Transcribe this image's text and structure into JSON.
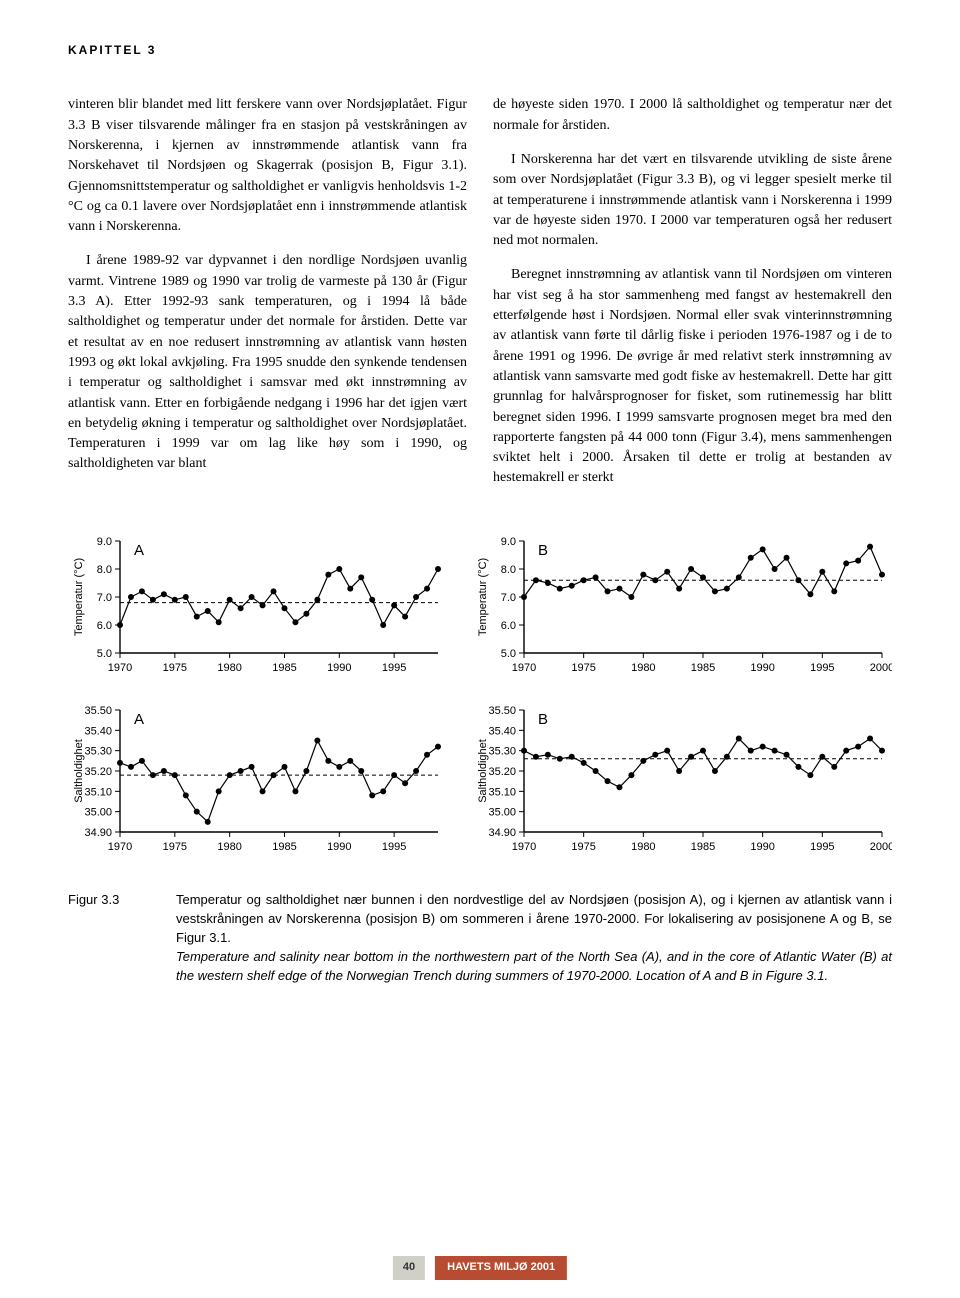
{
  "chapter_label": "KAPITTEL 3",
  "left_col": {
    "p1": "vinteren blir blandet med litt ferskere vann over Nordsjøplatået. Figur 3.3 B viser tilsvarende målinger fra en stasjon på vestskråningen av Norskerenna, i kjernen av innstrømmende atlantisk vann fra Norskehavet til Nordsjøen og Skagerrak (posisjon B, Figur 3.1). Gjennomsnittstemperatur og saltholdighet er vanligvis henholdsvis 1-2 °C og ca 0.1 lavere over Nordsjøplatået enn i innstrømmende atlantisk vann i Norskerenna.",
    "p2": "I årene 1989-92 var dypvannet i den nordlige Nordsjøen uvanlig varmt. Vintrene 1989 og 1990 var trolig de varmeste på 130 år (Figur 3.3 A). Etter 1992-93 sank temperaturen, og i 1994 lå både saltholdighet og temperatur under det normale for årstiden. Dette var et resultat av en noe redusert innstrømning av atlantisk vann høsten 1993 og økt lokal avkjøling. Fra 1995 snudde den synkende tendensen i temperatur og saltholdighet i samsvar med økt innstrømning av atlantisk vann. Etter en forbigående nedgang i 1996 har det igjen vært en betydelig økning i temperatur og saltholdighet over Nordsjøplatået. Temperaturen i 1999 var om lag like høy som i 1990, og saltholdigheten var blant"
  },
  "right_col": {
    "p1": "de høyeste siden 1970. I 2000 lå saltholdighet og temperatur nær det normale for årstiden.",
    "p2": "I Norskerenna har det vært en tilsvarende utvikling de siste årene som over Nordsjøplatået (Figur 3.3 B), og vi legger spesielt merke til at temperaturene i innstrømmende atlantisk vann i Norskerenna i 1999 var de høyeste siden 1970. I 2000 var temperaturen også her redusert ned mot normalen.",
    "p3": "Beregnet innstrømning av atlantisk vann til Nordsjøen om vinteren har vist seg å ha stor sammenheng med fangst av hestemakrell den etterfølgende høst i Nordsjøen. Normal eller svak vinterinnstrømning av atlantisk vann førte til dårlig fiske i perioden 1976-1987 og i de to årene 1991 og 1996. De øvrige år med relativt sterk innstrømning av atlantisk vann samsvarte med godt fiske av hestemakrell. Dette har gitt grunnlag for halvårsprognoser for fisket, som rutinemessig har blitt beregnet siden 1996. I 1999 samsvarte prognosen meget bra med den rapporterte fangsten på 44 000 tonn (Figur 3.4), mens sammenhengen sviktet helt i 2000. Årsaken til dette er trolig at bestanden av hestemakrell er sterkt"
  },
  "chart_temp_a": {
    "type": "line",
    "label": "A",
    "ylabel": "Temperatur (°C)",
    "ylim": [
      5.0,
      9.0
    ],
    "yticks": [
      5.0,
      6.0,
      7.0,
      8.0,
      9.0
    ],
    "xlim": [
      1970,
      1999
    ],
    "xticks": [
      1970,
      1975,
      1980,
      1985,
      1990,
      1995
    ],
    "mean_line": 6.8,
    "x": [
      1970,
      1971,
      1972,
      1973,
      1974,
      1975,
      1976,
      1977,
      1978,
      1979,
      1980,
      1981,
      1982,
      1983,
      1984,
      1985,
      1986,
      1987,
      1988,
      1989,
      1990,
      1991,
      1992,
      1993,
      1994,
      1995,
      1996,
      1997,
      1998,
      1999
    ],
    "y": [
      6.0,
      7.0,
      7.2,
      6.9,
      7.1,
      6.9,
      7.0,
      6.3,
      6.5,
      6.1,
      6.9,
      6.6,
      7.0,
      6.7,
      7.2,
      6.6,
      6.1,
      6.4,
      6.9,
      7.8,
      8.0,
      7.3,
      7.7,
      6.9,
      6.0,
      6.7,
      6.3,
      7.0,
      7.3,
      8.0
    ],
    "line_color": "#000000",
    "marker": "circle",
    "marker_size": 3,
    "grid_color": "#000000",
    "bg": "#ffffff"
  },
  "chart_temp_b": {
    "type": "line",
    "label": "B",
    "ylabel": "Temperatur (°C)",
    "ylim": [
      5.0,
      9.0
    ],
    "yticks": [
      5.0,
      6.0,
      7.0,
      8.0,
      9.0
    ],
    "xlim": [
      1970,
      2000
    ],
    "xticks": [
      1970,
      1975,
      1980,
      1985,
      1990,
      1995,
      2000
    ],
    "mean_line": 7.6,
    "x": [
      1970,
      1971,
      1972,
      1973,
      1974,
      1975,
      1976,
      1977,
      1978,
      1979,
      1980,
      1981,
      1982,
      1983,
      1984,
      1985,
      1986,
      1987,
      1988,
      1989,
      1990,
      1991,
      1992,
      1993,
      1994,
      1995,
      1996,
      1997,
      1998,
      1999,
      2000
    ],
    "y": [
      7.0,
      7.6,
      7.5,
      7.3,
      7.4,
      7.6,
      7.7,
      7.2,
      7.3,
      7.0,
      7.8,
      7.6,
      7.9,
      7.3,
      8.0,
      7.7,
      7.2,
      7.3,
      7.7,
      8.4,
      8.7,
      8.0,
      8.4,
      7.6,
      7.1,
      7.9,
      7.2,
      8.2,
      8.3,
      8.8,
      7.8
    ],
    "line_color": "#000000",
    "marker": "circle",
    "marker_size": 3,
    "grid_color": "#000000",
    "bg": "#ffffff"
  },
  "chart_salt_a": {
    "type": "line",
    "label": "A",
    "ylabel": "Saltholdighet",
    "ylim": [
      34.9,
      35.5
    ],
    "yticks": [
      34.9,
      35.0,
      35.1,
      35.2,
      35.3,
      35.4,
      35.5
    ],
    "xlim": [
      1970,
      1999
    ],
    "xticks": [
      1970,
      1975,
      1980,
      1985,
      1990,
      1995
    ],
    "mean_line": 35.18,
    "x": [
      1970,
      1971,
      1972,
      1973,
      1974,
      1975,
      1976,
      1977,
      1978,
      1979,
      1980,
      1981,
      1982,
      1983,
      1984,
      1985,
      1986,
      1987,
      1988,
      1989,
      1990,
      1991,
      1992,
      1993,
      1994,
      1995,
      1996,
      1997,
      1998,
      1999
    ],
    "y": [
      35.24,
      35.22,
      35.25,
      35.18,
      35.2,
      35.18,
      35.08,
      35.0,
      34.95,
      35.1,
      35.18,
      35.2,
      35.22,
      35.1,
      35.18,
      35.22,
      35.1,
      35.2,
      35.35,
      35.25,
      35.22,
      35.25,
      35.2,
      35.08,
      35.1,
      35.18,
      35.14,
      35.2,
      35.28,
      35.32
    ],
    "line_color": "#000000",
    "marker": "circle",
    "marker_size": 3,
    "grid_color": "#000000",
    "bg": "#ffffff"
  },
  "chart_salt_b": {
    "type": "line",
    "label": "B",
    "ylabel": "Saltholdighet",
    "ylim": [
      34.9,
      35.5
    ],
    "yticks": [
      34.9,
      35.0,
      35.1,
      35.2,
      35.3,
      35.4,
      35.5
    ],
    "xlim": [
      1970,
      2000
    ],
    "xticks": [
      1970,
      1975,
      1980,
      1985,
      1990,
      1995,
      2000
    ],
    "mean_line": 35.26,
    "x": [
      1970,
      1971,
      1972,
      1973,
      1974,
      1975,
      1976,
      1977,
      1978,
      1979,
      1980,
      1981,
      1982,
      1983,
      1984,
      1985,
      1986,
      1987,
      1988,
      1989,
      1990,
      1991,
      1992,
      1993,
      1994,
      1995,
      1996,
      1997,
      1998,
      1999,
      2000
    ],
    "y": [
      35.3,
      35.27,
      35.28,
      35.26,
      35.27,
      35.24,
      35.2,
      35.15,
      35.12,
      35.18,
      35.25,
      35.28,
      35.3,
      35.2,
      35.27,
      35.3,
      35.2,
      35.27,
      35.36,
      35.3,
      35.32,
      35.3,
      35.28,
      35.22,
      35.18,
      35.27,
      35.22,
      35.3,
      35.32,
      35.36,
      35.3
    ],
    "line_color": "#000000",
    "marker": "circle",
    "marker_size": 3,
    "grid_color": "#000000",
    "bg": "#ffffff"
  },
  "figure": {
    "label": "Figur 3.3",
    "norwegian": "Temperatur og saltholdighet nær bunnen i den nordvestlige del av Nordsjøen (posisjon A), og i kjernen av atlantisk vann i vestskråningen av Norskerenna (posisjon B) om sommeren i årene 1970-2000. For lokalisering av posisjonene A og B, se Figur 3.1.",
    "english": "Temperature and salinity near bottom in the northwestern part of the North Sea (A), and in the core of Atlantic Water (B) at the western shelf edge of the Norwegian Trench during summers of 1970-2000. Location of A and B in Figure 3.1."
  },
  "footer": {
    "page": "40",
    "text": "HAVETS MILJØ 2001"
  }
}
